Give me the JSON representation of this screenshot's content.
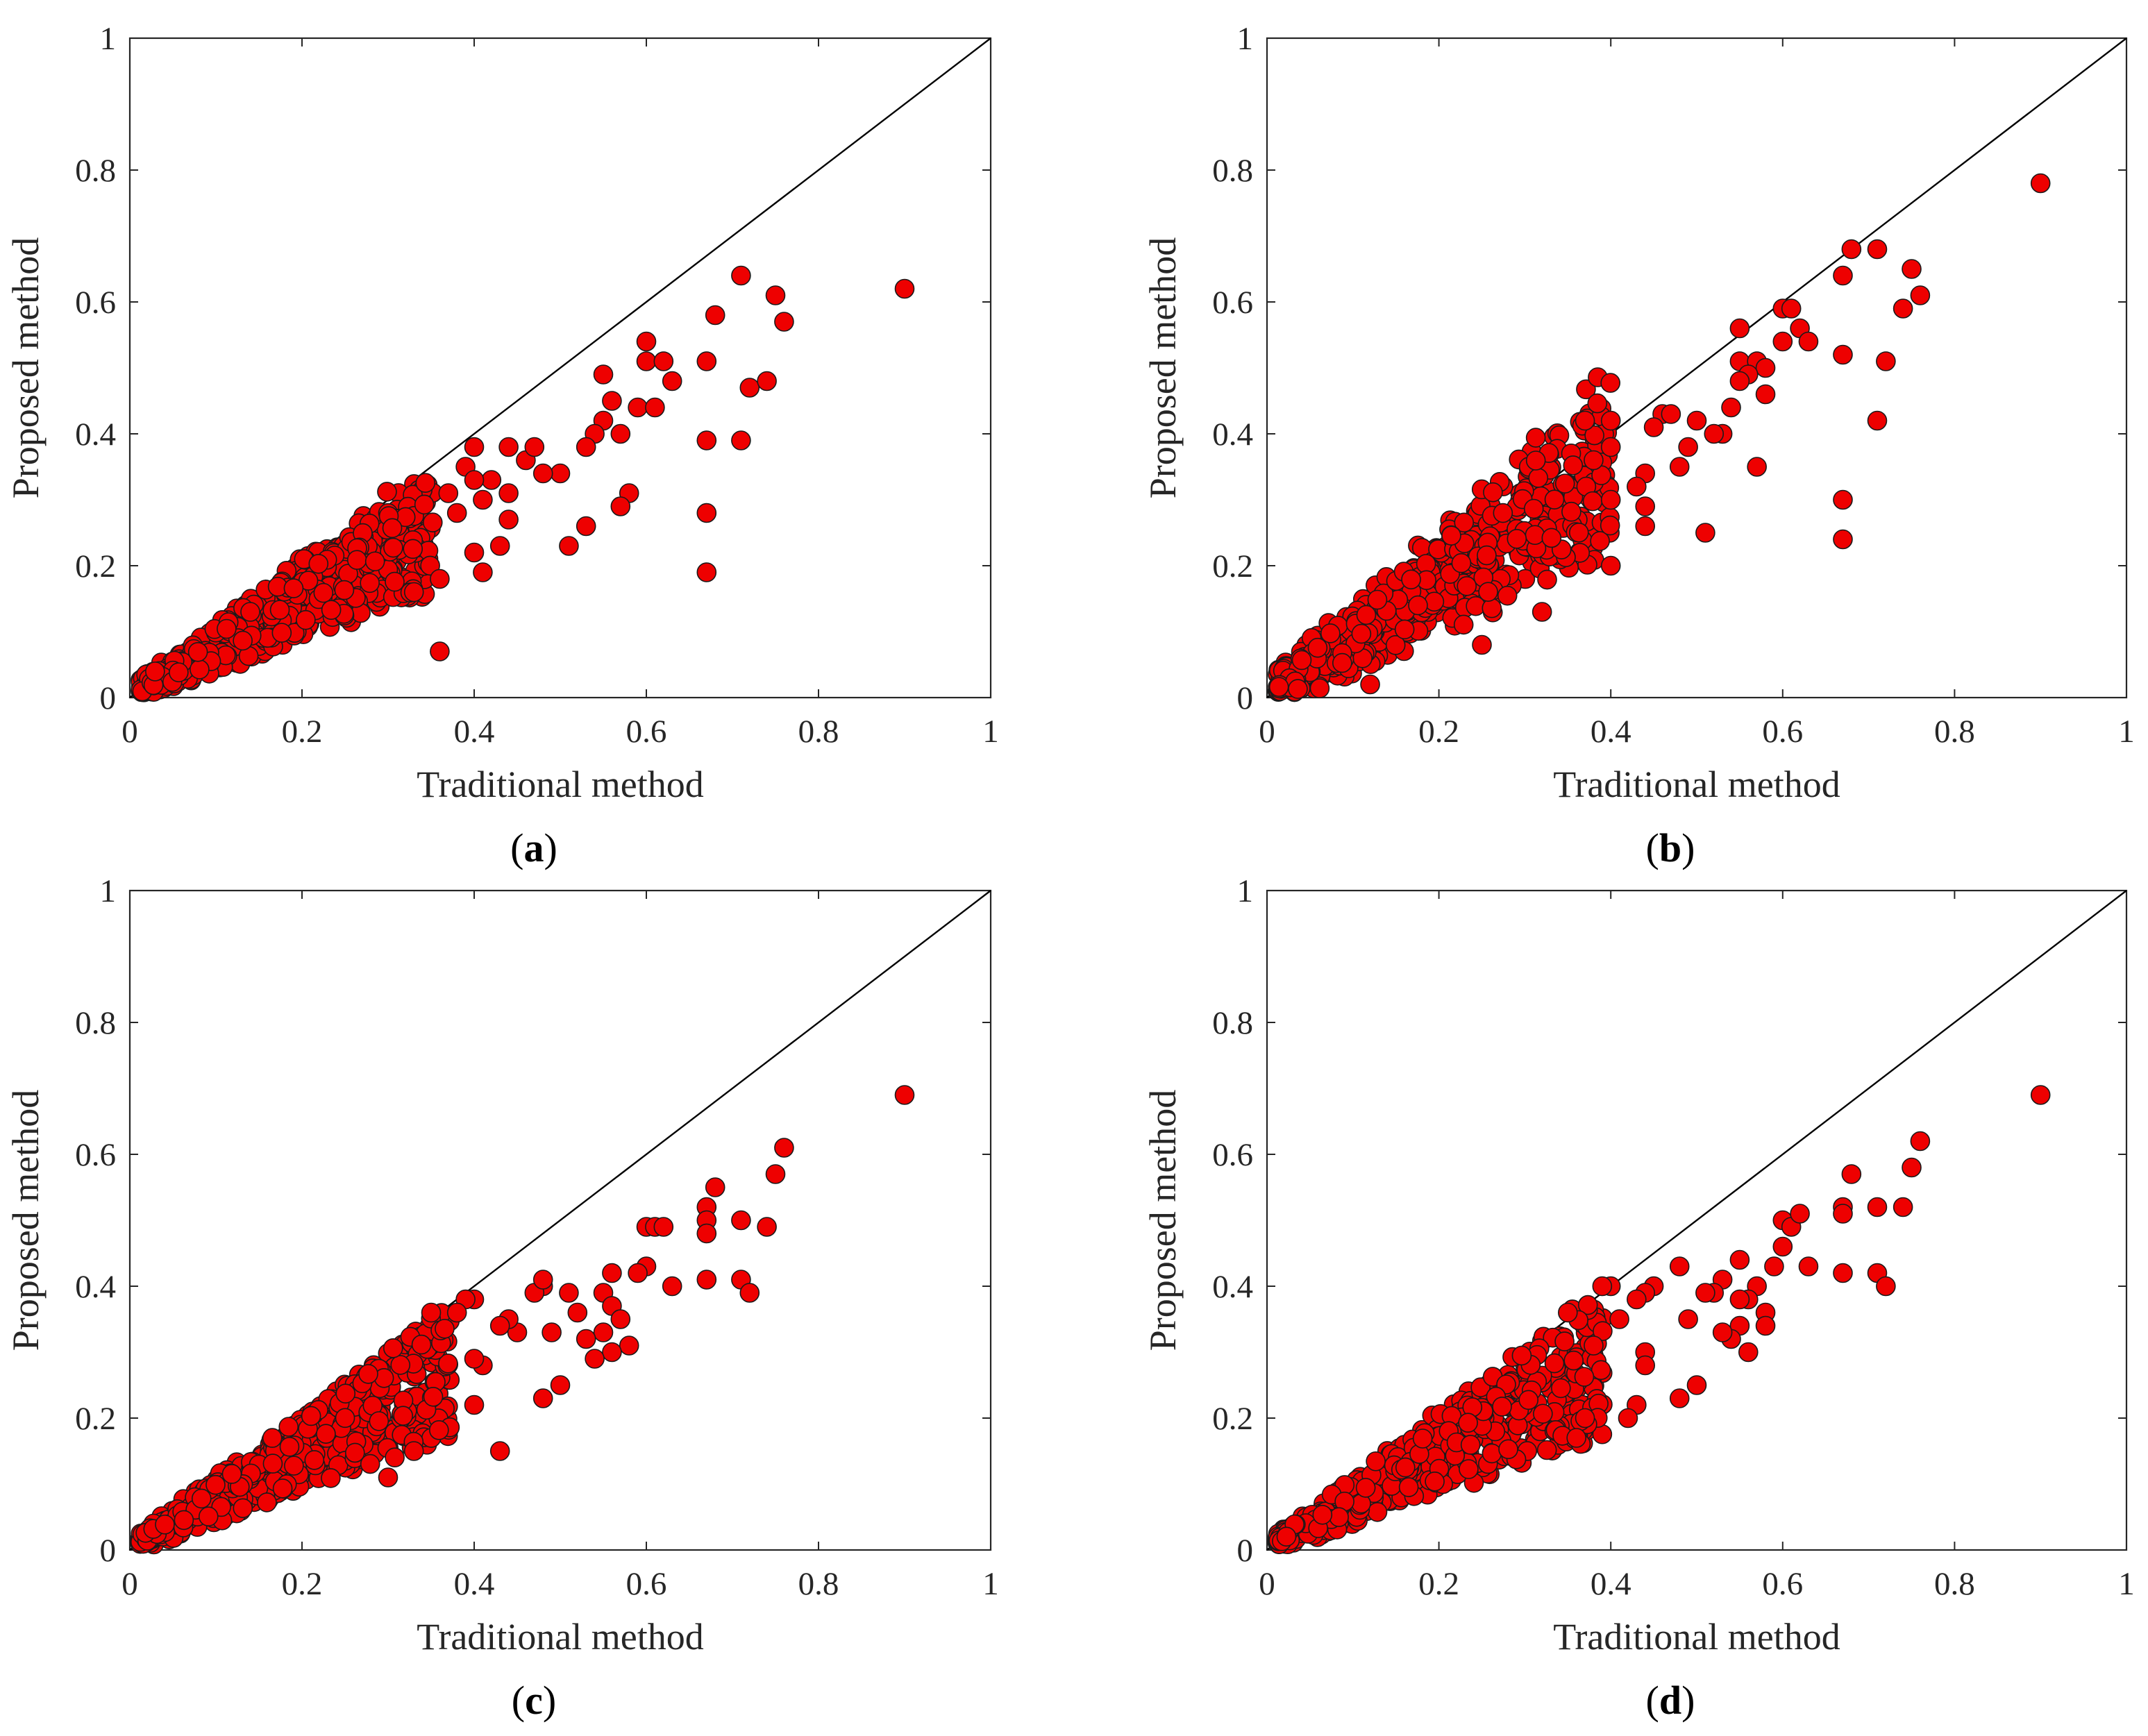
{
  "figure": {
    "colors": {
      "marker_fill": "#ee0000",
      "marker_edge": "#1a1a1a",
      "axis": "#262626",
      "reference_line": "#000000"
    }
  },
  "chart_data": [
    {
      "type": "scatter",
      "caption": "a",
      "xlabel": "Traditional method",
      "ylabel": "Proposed method",
      "xlim": [
        0,
        1
      ],
      "ylim": [
        0,
        1
      ],
      "xticks": [
        "0",
        "0.2",
        "0.4",
        "0.6",
        "0.8",
        "1"
      ],
      "yticks": [
        "0",
        "0.2",
        "0.4",
        "0.6",
        "0.8",
        "1"
      ],
      "reference_line": [
        [
          0,
          0
        ],
        [
          1,
          1
        ]
      ],
      "points": [
        [
          0.9,
          0.62
        ],
        [
          0.71,
          0.64
        ],
        [
          0.75,
          0.61
        ],
        [
          0.76,
          0.57
        ],
        [
          0.68,
          0.58
        ],
        [
          0.6,
          0.54
        ],
        [
          0.6,
          0.51
        ],
        [
          0.62,
          0.51
        ],
        [
          0.63,
          0.48
        ],
        [
          0.67,
          0.51
        ],
        [
          0.72,
          0.47
        ],
        [
          0.74,
          0.48
        ],
        [
          0.55,
          0.49
        ],
        [
          0.56,
          0.45
        ],
        [
          0.59,
          0.44
        ],
        [
          0.61,
          0.44
        ],
        [
          0.55,
          0.42
        ],
        [
          0.54,
          0.4
        ],
        [
          0.57,
          0.4
        ],
        [
          0.53,
          0.38
        ],
        [
          0.58,
          0.31
        ],
        [
          0.57,
          0.29
        ],
        [
          0.67,
          0.39
        ],
        [
          0.71,
          0.39
        ],
        [
          0.67,
          0.28
        ],
        [
          0.67,
          0.19
        ],
        [
          0.51,
          0.23
        ],
        [
          0.53,
          0.26
        ],
        [
          0.5,
          0.34
        ],
        [
          0.48,
          0.34
        ],
        [
          0.46,
          0.36
        ],
        [
          0.47,
          0.38
        ],
        [
          0.44,
          0.38
        ],
        [
          0.42,
          0.33
        ],
        [
          0.41,
          0.3
        ],
        [
          0.44,
          0.31
        ],
        [
          0.43,
          0.23
        ],
        [
          0.44,
          0.27
        ],
        [
          0.41,
          0.19
        ],
        [
          0.36,
          0.07
        ],
        [
          0.4,
          0.38
        ],
        [
          0.39,
          0.35
        ],
        [
          0.4,
          0.33
        ],
        [
          0.37,
          0.31
        ],
        [
          0.38,
          0.28
        ],
        [
          0.4,
          0.22
        ],
        [
          0.36,
          0.18
        ],
        [
          0.33,
          0.16
        ]
      ]
    },
    {
      "type": "scatter",
      "caption": "b",
      "xlabel": "Traditional method",
      "ylabel": "Proposed method",
      "xlim": [
        0,
        1
      ],
      "ylim": [
        0,
        1
      ],
      "xticks": [
        "0",
        "0.2",
        "0.4",
        "0.6",
        "0.8",
        "1"
      ],
      "yticks": [
        "0",
        "0.2",
        "0.4",
        "0.6",
        "0.8",
        "1"
      ],
      "reference_line": [
        [
          0,
          0
        ],
        [
          1,
          1
        ]
      ],
      "points": [
        [
          0.9,
          0.78
        ],
        [
          0.68,
          0.68
        ],
        [
          0.71,
          0.68
        ],
        [
          0.67,
          0.64
        ],
        [
          0.75,
          0.65
        ],
        [
          0.74,
          0.59
        ],
        [
          0.76,
          0.61
        ],
        [
          0.6,
          0.59
        ],
        [
          0.61,
          0.59
        ],
        [
          0.62,
          0.56
        ],
        [
          0.6,
          0.54
        ],
        [
          0.63,
          0.54
        ],
        [
          0.55,
          0.56
        ],
        [
          0.55,
          0.51
        ],
        [
          0.57,
          0.51
        ],
        [
          0.58,
          0.5
        ],
        [
          0.56,
          0.49
        ],
        [
          0.55,
          0.48
        ],
        [
          0.58,
          0.46
        ],
        [
          0.67,
          0.52
        ],
        [
          0.72,
          0.51
        ],
        [
          0.71,
          0.42
        ],
        [
          0.57,
          0.35
        ],
        [
          0.67,
          0.3
        ],
        [
          0.67,
          0.24
        ],
        [
          0.53,
          0.4
        ],
        [
          0.54,
          0.44
        ],
        [
          0.52,
          0.4
        ],
        [
          0.51,
          0.25
        ],
        [
          0.46,
          0.43
        ],
        [
          0.47,
          0.43
        ],
        [
          0.45,
          0.41
        ],
        [
          0.49,
          0.38
        ],
        [
          0.5,
          0.42
        ],
        [
          0.48,
          0.35
        ],
        [
          0.44,
          0.34
        ],
        [
          0.43,
          0.32
        ],
        [
          0.44,
          0.29
        ],
        [
          0.44,
          0.26
        ],
        [
          0.4,
          0.42
        ],
        [
          0.4,
          0.38
        ],
        [
          0.37,
          0.42
        ],
        [
          0.38,
          0.36
        ],
        [
          0.4,
          0.3
        ],
        [
          0.4,
          0.2
        ],
        [
          0.32,
          0.13
        ],
        [
          0.25,
          0.08
        ],
        [
          0.12,
          0.02
        ]
      ]
    },
    {
      "type": "scatter",
      "caption": "c",
      "xlabel": "Traditional method",
      "ylabel": "Proposed method",
      "xlim": [
        0,
        1
      ],
      "ylim": [
        0,
        1
      ],
      "xticks": [
        "0",
        "0.2",
        "0.4",
        "0.6",
        "0.8",
        "1"
      ],
      "yticks": [
        "0",
        "0.2",
        "0.4",
        "0.6",
        "0.8",
        "1"
      ],
      "reference_line": [
        [
          0,
          0
        ],
        [
          1,
          1
        ]
      ],
      "points": [
        [
          0.9,
          0.69
        ],
        [
          0.76,
          0.61
        ],
        [
          0.75,
          0.57
        ],
        [
          0.68,
          0.55
        ],
        [
          0.67,
          0.52
        ],
        [
          0.67,
          0.5
        ],
        [
          0.67,
          0.48
        ],
        [
          0.71,
          0.5
        ],
        [
          0.74,
          0.49
        ],
        [
          0.6,
          0.49
        ],
        [
          0.61,
          0.49
        ],
        [
          0.62,
          0.49
        ],
        [
          0.67,
          0.41
        ],
        [
          0.71,
          0.41
        ],
        [
          0.72,
          0.39
        ],
        [
          0.63,
          0.4
        ],
        [
          0.6,
          0.43
        ],
        [
          0.59,
          0.42
        ],
        [
          0.56,
          0.42
        ],
        [
          0.55,
          0.39
        ],
        [
          0.56,
          0.37
        ],
        [
          0.57,
          0.35
        ],
        [
          0.58,
          0.31
        ],
        [
          0.56,
          0.3
        ],
        [
          0.54,
          0.29
        ],
        [
          0.55,
          0.33
        ],
        [
          0.53,
          0.32
        ],
        [
          0.52,
          0.36
        ],
        [
          0.51,
          0.39
        ],
        [
          0.48,
          0.4
        ],
        [
          0.47,
          0.39
        ],
        [
          0.48,
          0.41
        ],
        [
          0.49,
          0.33
        ],
        [
          0.5,
          0.25
        ],
        [
          0.48,
          0.23
        ],
        [
          0.45,
          0.33
        ],
        [
          0.44,
          0.35
        ],
        [
          0.43,
          0.34
        ],
        [
          0.43,
          0.15
        ],
        [
          0.41,
          0.28
        ],
        [
          0.4,
          0.38
        ],
        [
          0.39,
          0.38
        ],
        [
          0.38,
          0.36
        ],
        [
          0.35,
          0.36
        ],
        [
          0.4,
          0.29
        ],
        [
          0.4,
          0.22
        ],
        [
          0.3,
          0.11
        ],
        [
          0.33,
          0.15
        ]
      ]
    },
    {
      "type": "scatter",
      "caption": "d",
      "xlabel": "Traditional method",
      "ylabel": "Proposed method",
      "xlim": [
        0,
        1
      ],
      "ylim": [
        0,
        1
      ],
      "xticks": [
        "0",
        "0.2",
        "0.4",
        "0.6",
        "0.8",
        "1"
      ],
      "yticks": [
        "0",
        "0.2",
        "0.4",
        "0.6",
        "0.8",
        "1"
      ],
      "reference_line": [
        [
          0,
          0
        ],
        [
          1,
          1
        ]
      ],
      "points": [
        [
          0.9,
          0.69
        ],
        [
          0.76,
          0.62
        ],
        [
          0.75,
          0.58
        ],
        [
          0.68,
          0.57
        ],
        [
          0.67,
          0.52
        ],
        [
          0.67,
          0.51
        ],
        [
          0.71,
          0.52
        ],
        [
          0.74,
          0.52
        ],
        [
          0.6,
          0.5
        ],
        [
          0.61,
          0.49
        ],
        [
          0.62,
          0.51
        ],
        [
          0.67,
          0.42
        ],
        [
          0.71,
          0.42
        ],
        [
          0.72,
          0.4
        ],
        [
          0.63,
          0.43
        ],
        [
          0.59,
          0.43
        ],
        [
          0.6,
          0.46
        ],
        [
          0.58,
          0.36
        ],
        [
          0.58,
          0.34
        ],
        [
          0.57,
          0.4
        ],
        [
          0.56,
          0.38
        ],
        [
          0.55,
          0.44
        ],
        [
          0.55,
          0.38
        ],
        [
          0.55,
          0.34
        ],
        [
          0.54,
          0.32
        ],
        [
          0.56,
          0.3
        ],
        [
          0.53,
          0.41
        ],
        [
          0.52,
          0.39
        ],
        [
          0.51,
          0.39
        ],
        [
          0.53,
          0.33
        ],
        [
          0.5,
          0.25
        ],
        [
          0.48,
          0.23
        ],
        [
          0.48,
          0.43
        ],
        [
          0.49,
          0.35
        ],
        [
          0.45,
          0.4
        ],
        [
          0.44,
          0.39
        ],
        [
          0.43,
          0.38
        ],
        [
          0.44,
          0.3
        ],
        [
          0.44,
          0.28
        ],
        [
          0.43,
          0.22
        ],
        [
          0.42,
          0.2
        ],
        [
          0.41,
          0.35
        ],
        [
          0.4,
          0.4
        ],
        [
          0.39,
          0.4
        ],
        [
          0.38,
          0.31
        ],
        [
          0.35,
          0.36
        ],
        [
          0.36,
          0.17
        ],
        [
          0.37,
          0.2
        ]
      ]
    }
  ]
}
